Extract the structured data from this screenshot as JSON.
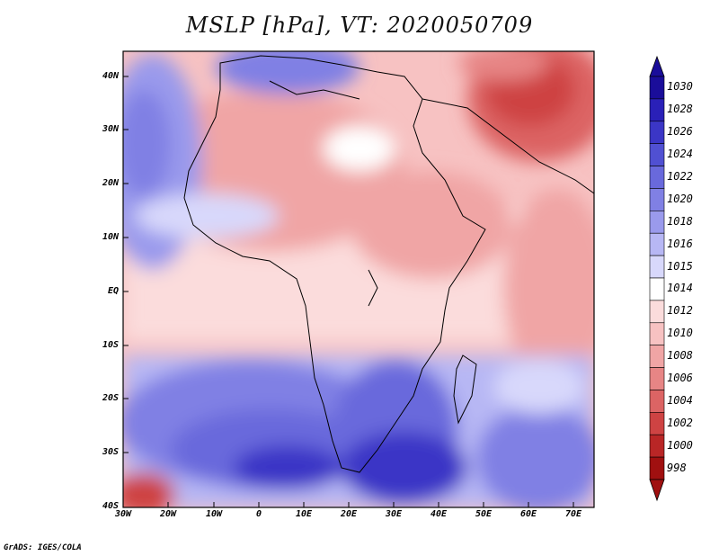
{
  "title": "MSLP [hPa], VT: 2020050709",
  "lat_labels": [
    "40N",
    "30N",
    "20N",
    "10N",
    "EQ",
    "10S",
    "20S",
    "30S",
    "40S"
  ],
  "lon_labels": [
    "30W",
    "20W",
    "10W",
    "0",
    "10E",
    "20E",
    "30E",
    "40E",
    "50E",
    "60E",
    "70E"
  ],
  "colorbar": {
    "labels": [
      "1030",
      "1028",
      "1026",
      "1024",
      "1022",
      "1020",
      "1018",
      "1016",
      "1015",
      "1014",
      "1012",
      "1010",
      "1008",
      "1006",
      "1004",
      "1002",
      "1000",
      "998"
    ],
    "colors": [
      "#1a0d9a",
      "#2a20b8",
      "#3b36c6",
      "#5050d2",
      "#6969dc",
      "#8080e4",
      "#9a9aec",
      "#b7b7f4",
      "#d8d8fb",
      "#ffffff",
      "#fbdcdc",
      "#f7c2c2",
      "#f0a5a5",
      "#e78585",
      "#dc6464",
      "#ce4343",
      "#b92626",
      "#a01010"
    ]
  },
  "credit": "GrADS: IGES/COLA"
}
